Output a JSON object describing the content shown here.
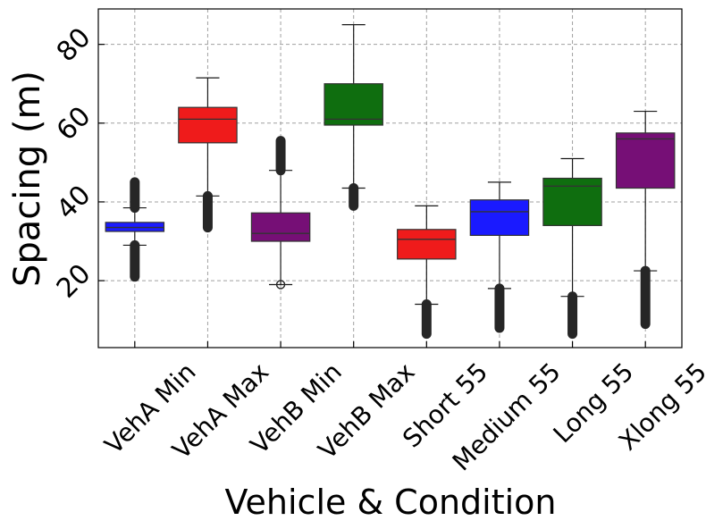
{
  "chart_data": {
    "type": "box",
    "title": "",
    "xlabel": "Vehicle & Condition",
    "ylabel": "Spacing (m)",
    "ylim": [
      3,
      89
    ],
    "yticks": [
      20,
      40,
      60,
      80
    ],
    "grid": true,
    "categories": [
      "VehA Min",
      "VehA Max",
      "VehB Min",
      "VehB Max",
      "Short 55",
      "Medium 55",
      "Long 55",
      "Xlong 55"
    ],
    "boxes": [
      {
        "name": "VehA Min",
        "color": "#1a1aff",
        "q1": 32.5,
        "median": 33.5,
        "q3": 34.8,
        "whisker_low": 29,
        "whisker_high": 38.5,
        "outliers_low": [
          21,
          29
        ],
        "outliers_high": [
          38.5,
          45
        ]
      },
      {
        "name": "VehA Max",
        "color": "#ef1b1b",
        "q1": 55,
        "median": 61,
        "q3": 64,
        "whisker_low": 41.5,
        "whisker_high": 71.5,
        "outliers_low": [
          33.5,
          41.5
        ],
        "outliers_high": null
      },
      {
        "name": "VehB Min",
        "color": "#760f76",
        "q1": 30,
        "median": 32,
        "q3": 37.2,
        "whisker_low": 19,
        "whisker_high": 48,
        "outliers_low": null,
        "outliers_high": [
          48,
          55.5
        ]
      },
      {
        "name": "VehB Max",
        "color": "#0f6e0f",
        "q1": 59.5,
        "median": 61,
        "q3": 70,
        "whisker_low": 43.5,
        "whisker_high": 85,
        "outliers_low": [
          39,
          43.5
        ],
        "outliers_high": null
      },
      {
        "name": "Short 55",
        "color": "#ef1b1b",
        "q1": 25.5,
        "median": 30.5,
        "q3": 33,
        "whisker_low": 14,
        "whisker_high": 39,
        "outliers_low": [
          6.5,
          14
        ],
        "outliers_high": null
      },
      {
        "name": "Medium 55",
        "color": "#1a1aff",
        "q1": 31.5,
        "median": 37.5,
        "q3": 40.5,
        "whisker_low": 18,
        "whisker_high": 45,
        "outliers_low": [
          8,
          18
        ],
        "outliers_high": null
      },
      {
        "name": "Long 55",
        "color": "#0f6e0f",
        "q1": 34,
        "median": 44,
        "q3": 46,
        "whisker_low": 16,
        "whisker_high": 51,
        "outliers_low": [
          6.5,
          16
        ],
        "outliers_high": null
      },
      {
        "name": "Xlong 55",
        "color": "#760f76",
        "q1": 43.5,
        "median": 56,
        "q3": 57.5,
        "whisker_low": 22.5,
        "whisker_high": 63,
        "outliers_low": [
          9,
          22.5
        ],
        "outliers_high": null
      }
    ]
  }
}
